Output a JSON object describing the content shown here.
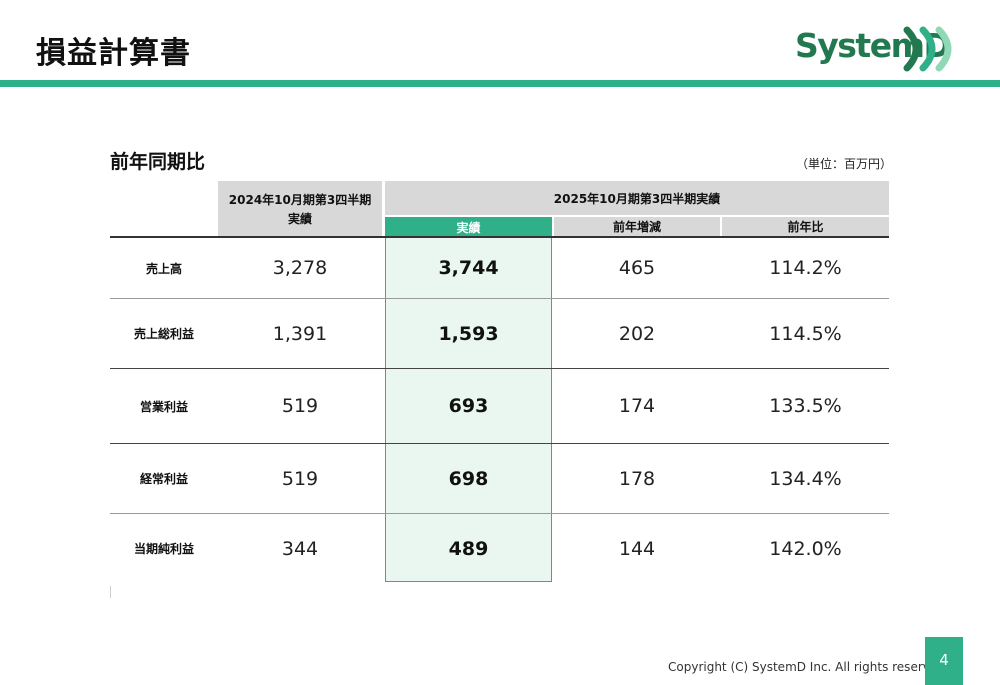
{
  "page": {
    "title": "損益計算書",
    "logo_text": "SystemD",
    "accent_color": "#2fb089",
    "page_number": "4",
    "copyright": "Copyright (C) SystemD Inc. All rights reserved."
  },
  "section": {
    "title": "前年同期比",
    "unit": "（単位：百万円）"
  },
  "table": {
    "header_prev_line1": "2024年10月期第3四半期",
    "header_prev_line2": "実績",
    "header_current": "2025年10月期第3四半期実績",
    "col_actual": "実績",
    "col_diff": "前年増減",
    "col_ratio": "前年比",
    "rows": [
      {
        "label": "売上高",
        "prev": "3,278",
        "actual": "3,744",
        "diff": "465",
        "ratio": "114.2%"
      },
      {
        "label": "売上総利益",
        "prev": "1,391",
        "actual": "1,593",
        "diff": "202",
        "ratio": "114.5%"
      },
      {
        "label": "営業利益",
        "prev": "519",
        "actual": "693",
        "diff": "174",
        "ratio": "133.5%"
      },
      {
        "label": "経常利益",
        "prev": "519",
        "actual": "698",
        "diff": "178",
        "ratio": "134.4%"
      },
      {
        "label": "当期純利益",
        "prev": "344",
        "actual": "489",
        "diff": "144",
        "ratio": "142.0%"
      }
    ]
  }
}
